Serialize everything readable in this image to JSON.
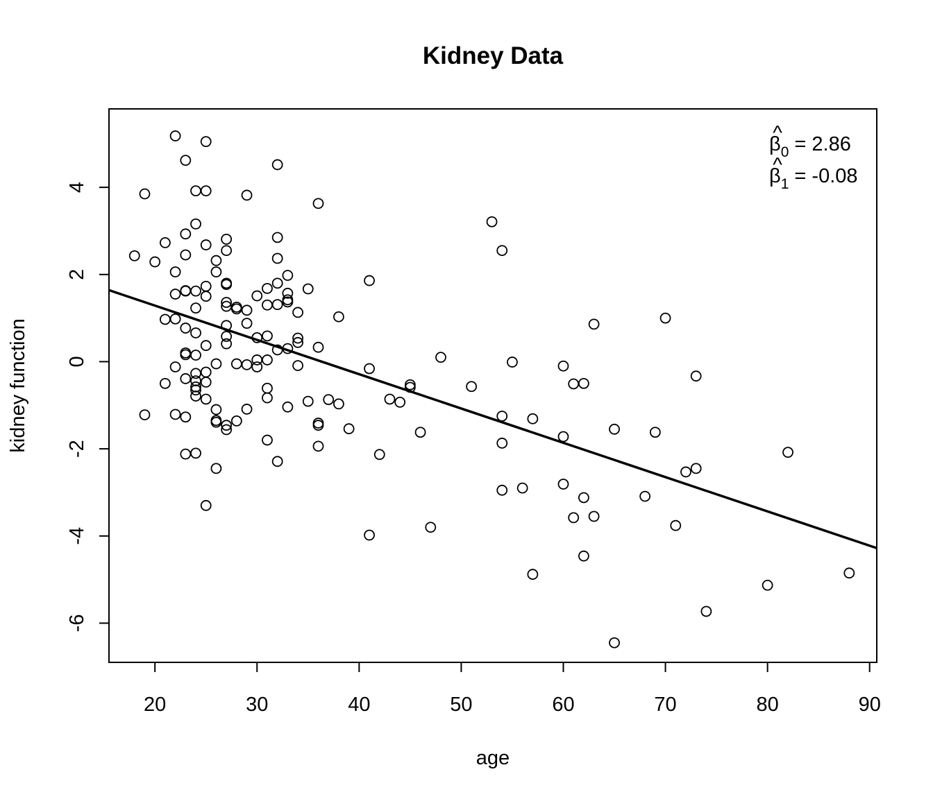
{
  "chart_data": {
    "type": "scatter",
    "title": "Kidney Data",
    "xlabel": "age",
    "ylabel": "kidney function",
    "xlim": [
      15.5,
      90.7
    ],
    "ylim": [
      -6.9,
      5.8
    ],
    "xticks": [
      20,
      30,
      40,
      50,
      60,
      70,
      80,
      90
    ],
    "yticks": [
      -6,
      -4,
      -2,
      0,
      2,
      4
    ],
    "grid": false,
    "legend": "none",
    "annotations": [
      {
        "symbol": "β",
        "sub": "0",
        "text": " = 2.86"
      },
      {
        "symbol": "β",
        "sub": "1",
        "text": " = -0.08"
      }
    ],
    "fit_line": {
      "intercept": 2.86,
      "slope": -0.0787
    },
    "points": [
      [
        22,
        5.18
      ],
      [
        25,
        5.05
      ],
      [
        23,
        4.62
      ],
      [
        32,
        4.52
      ],
      [
        19,
        3.85
      ],
      [
        24,
        3.92
      ],
      [
        25,
        3.92
      ],
      [
        29,
        3.82
      ],
      [
        36,
        3.63
      ],
      [
        53,
        3.21
      ],
      [
        24,
        3.16
      ],
      [
        23,
        2.93
      ],
      [
        27,
        2.81
      ],
      [
        32,
        2.85
      ],
      [
        21,
        2.73
      ],
      [
        25,
        2.68
      ],
      [
        54,
        2.55
      ],
      [
        27,
        2.55
      ],
      [
        23,
        2.45
      ],
      [
        18,
        2.43
      ],
      [
        32,
        2.37
      ],
      [
        20,
        2.29
      ],
      [
        26,
        2.32
      ],
      [
        22,
        2.06
      ],
      [
        26,
        2.06
      ],
      [
        33,
        1.98
      ],
      [
        41,
        1.86
      ],
      [
        27,
        1.8
      ],
      [
        27,
        1.77
      ],
      [
        32,
        1.8
      ],
      [
        25,
        1.73
      ],
      [
        31,
        1.68
      ],
      [
        35,
        1.67
      ],
      [
        23,
        1.62
      ],
      [
        23,
        1.63
      ],
      [
        24,
        1.62
      ],
      [
        22,
        1.55
      ],
      [
        25,
        1.5
      ],
      [
        30,
        1.51
      ],
      [
        33,
        1.57
      ],
      [
        33,
        1.42
      ],
      [
        33,
        1.37
      ],
      [
        27,
        1.36
      ],
      [
        32,
        1.31
      ],
      [
        31,
        1.3
      ],
      [
        27,
        1.27
      ],
      [
        28,
        1.25
      ],
      [
        28,
        1.21
      ],
      [
        24,
        1.23
      ],
      [
        29,
        1.18
      ],
      [
        34,
        1.13
      ],
      [
        38,
        1.03
      ],
      [
        70,
        1.0
      ],
      [
        21,
        0.97
      ],
      [
        22,
        0.98
      ],
      [
        29,
        0.88
      ],
      [
        63,
        0.86
      ],
      [
        27,
        0.83
      ],
      [
        23,
        0.77
      ],
      [
        24,
        0.66
      ],
      [
        27,
        0.58
      ],
      [
        31,
        0.59
      ],
      [
        30,
        0.55
      ],
      [
        34,
        0.54
      ],
      [
        34,
        0.44
      ],
      [
        27,
        0.41
      ],
      [
        25,
        0.37
      ],
      [
        36,
        0.33
      ],
      [
        33,
        0.3
      ],
      [
        32,
        0.27
      ],
      [
        23,
        0.2
      ],
      [
        23,
        0.16
      ],
      [
        24,
        0.15
      ],
      [
        48,
        0.1
      ],
      [
        30,
        0.04
      ],
      [
        31,
        0.04
      ],
      [
        55,
        -0.01
      ],
      [
        26,
        -0.05
      ],
      [
        28,
        -0.05
      ],
      [
        29,
        -0.07
      ],
      [
        34,
        -0.09
      ],
      [
        22,
        -0.12
      ],
      [
        30,
        -0.12
      ],
      [
        60,
        -0.1
      ],
      [
        41,
        -0.16
      ],
      [
        24,
        -0.27
      ],
      [
        25,
        -0.24
      ],
      [
        73,
        -0.33
      ],
      [
        23,
        -0.39
      ],
      [
        24,
        -0.44
      ],
      [
        25,
        -0.47
      ],
      [
        21,
        -0.5
      ],
      [
        61,
        -0.51
      ],
      [
        62,
        -0.5
      ],
      [
        45,
        -0.53
      ],
      [
        45,
        -0.59
      ],
      [
        24,
        -0.58
      ],
      [
        24,
        -0.65
      ],
      [
        31,
        -0.61
      ],
      [
        51,
        -0.57
      ],
      [
        24,
        -0.79
      ],
      [
        31,
        -0.83
      ],
      [
        25,
        -0.86
      ],
      [
        37,
        -0.87
      ],
      [
        43,
        -0.86
      ],
      [
        35,
        -0.91
      ],
      [
        44,
        -0.93
      ],
      [
        38,
        -0.97
      ],
      [
        33,
        -1.04
      ],
      [
        29,
        -1.09
      ],
      [
        26,
        -1.1
      ],
      [
        22,
        -1.21
      ],
      [
        19,
        -1.22
      ],
      [
        23,
        -1.27
      ],
      [
        54,
        -1.25
      ],
      [
        57,
        -1.31
      ],
      [
        26,
        -1.35
      ],
      [
        26,
        -1.39
      ],
      [
        28,
        -1.36
      ],
      [
        27,
        -1.46
      ],
      [
        36,
        -1.41
      ],
      [
        36,
        -1.46
      ],
      [
        27,
        -1.56
      ],
      [
        39,
        -1.54
      ],
      [
        65,
        -1.55
      ],
      [
        46,
        -1.62
      ],
      [
        69,
        -1.62
      ],
      [
        60,
        -1.72
      ],
      [
        31,
        -1.8
      ],
      [
        54,
        -1.87
      ],
      [
        36,
        -1.94
      ],
      [
        82,
        -2.08
      ],
      [
        24,
        -2.1
      ],
      [
        23,
        -2.12
      ],
      [
        42,
        -2.13
      ],
      [
        32,
        -2.29
      ],
      [
        26,
        -2.45
      ],
      [
        73,
        -2.45
      ],
      [
        72,
        -2.53
      ],
      [
        60,
        -2.81
      ],
      [
        56,
        -2.9
      ],
      [
        54,
        -2.95
      ],
      [
        68,
        -3.09
      ],
      [
        62,
        -3.12
      ],
      [
        25,
        -3.3
      ],
      [
        63,
        -3.55
      ],
      [
        61,
        -3.58
      ],
      [
        71,
        -3.76
      ],
      [
        47,
        -3.8
      ],
      [
        41,
        -3.98
      ],
      [
        62,
        -4.46
      ],
      [
        88,
        -4.85
      ],
      [
        57,
        -4.88
      ],
      [
        80,
        -5.13
      ],
      [
        74,
        -5.73
      ],
      [
        65,
        -6.45
      ]
    ]
  }
}
